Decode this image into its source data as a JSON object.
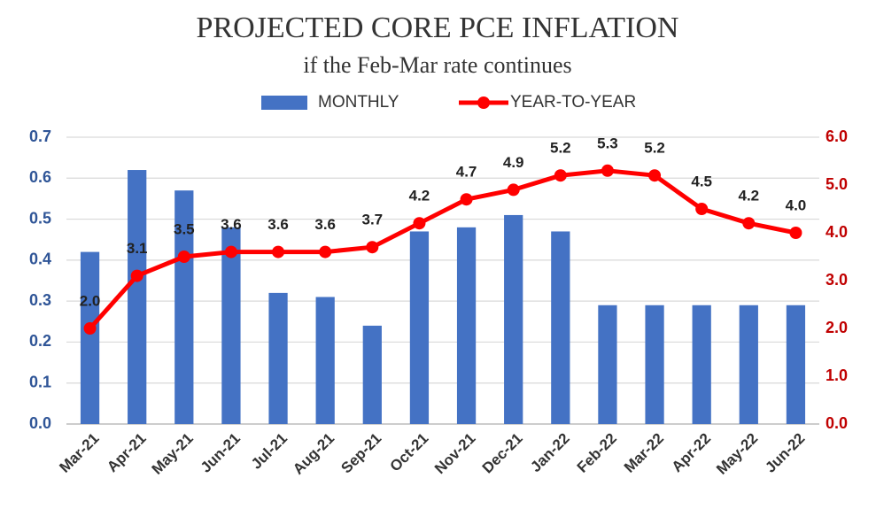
{
  "chart_data": {
    "type": "bar",
    "title": "PROJECTED CORE PCE INFLATION",
    "subtitle": "if the Feb-Mar rate continues",
    "categories": [
      "Mar-21",
      "Apr-21",
      "May-21",
      "Jun-21",
      "Jul-21",
      "Aug-21",
      "Sep-21",
      "Oct-21",
      "Nov-21",
      "Dec-21",
      "Jan-22",
      "Feb-22",
      "Mar-22",
      "Apr-22",
      "May-22",
      "Jun-22"
    ],
    "series": [
      {
        "name": "MONTHLY",
        "type": "bar",
        "color": "#4472c4",
        "values": [
          0.42,
          0.62,
          0.57,
          0.48,
          0.32,
          0.31,
          0.24,
          0.47,
          0.48,
          0.51,
          0.47,
          0.29,
          0.29,
          0.29,
          0.29,
          0.29
        ]
      },
      {
        "name": "YEAR-TO-YEAR",
        "type": "line",
        "axis": "y2",
        "color": "#ff0000",
        "values": [
          2.0,
          3.1,
          3.5,
          3.6,
          3.6,
          3.6,
          3.7,
          4.2,
          4.7,
          4.9,
          5.2,
          5.3,
          5.2,
          4.5,
          4.2,
          4.0
        ],
        "value_labels": [
          "2.0",
          "3.1",
          "3.5",
          "3.6",
          "3.6",
          "3.6",
          "3.7",
          "4.2",
          "4.7",
          "4.9",
          "5.2",
          "5.3",
          "5.2",
          "4.5",
          "4.2",
          "4.0"
        ]
      }
    ],
    "ylim": [
      0,
      0.7
    ],
    "yticks": [
      {
        "value": 0,
        "label": "0.0"
      },
      0.1,
      0.2,
      0.3,
      0.4,
      0.5,
      0.6,
      0.7
    ],
    "y2lim": [
      0,
      6
    ],
    "y2ticks": [
      {
        "value": 0,
        "label": "0.0"
      },
      {
        "value": 1,
        "label": "1.0"
      },
      {
        "value": 2,
        "label": "2.0"
      },
      {
        "value": 3,
        "label": "3.0"
      },
      {
        "value": 4,
        "label": "4.0"
      },
      {
        "value": 5,
        "label": "5.0"
      },
      {
        "value": 6,
        "label": "6.0"
      }
    ],
    "grid": true,
    "legend": "top"
  }
}
